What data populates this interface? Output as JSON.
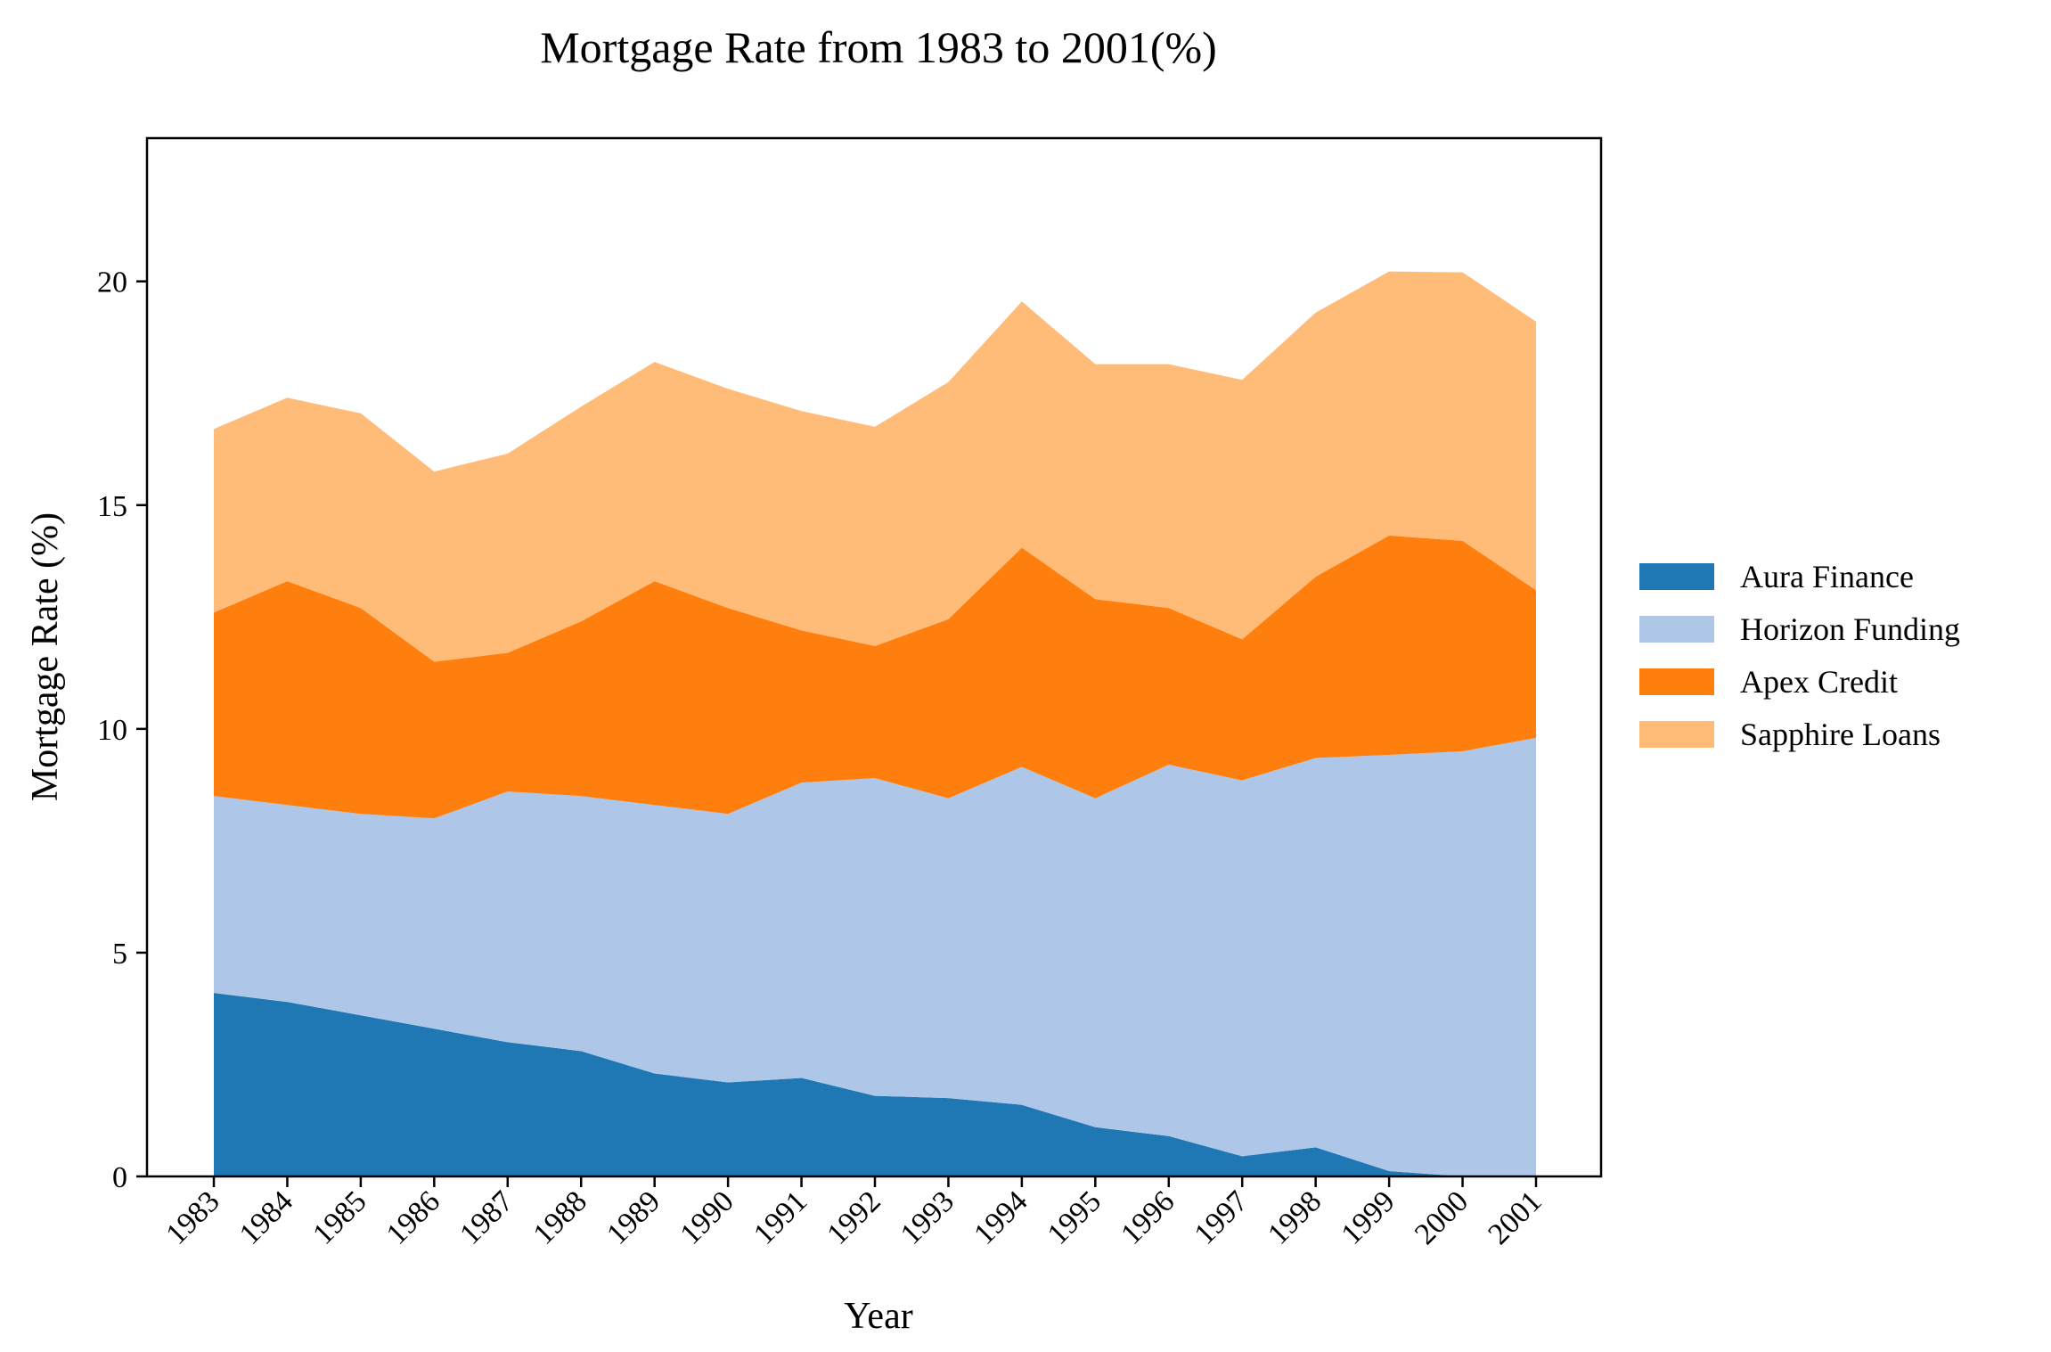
{
  "chart_data": {
    "type": "area",
    "stacked": true,
    "title": "Mortgage Rate from 1983 to 2001(%)",
    "xlabel": "Year",
    "ylabel": "Mortgage Rate (%)",
    "categories": [
      "1983",
      "1984",
      "1985",
      "1986",
      "1987",
      "1988",
      "1989",
      "1990",
      "1991",
      "1992",
      "1993",
      "1994",
      "1995",
      "1996",
      "1997",
      "1998",
      "1999",
      "2000",
      "2001"
    ],
    "ylim": [
      0,
      23.2
    ],
    "yticks": [
      0,
      5,
      10,
      15,
      20
    ],
    "grid": false,
    "legend_position": "right",
    "series": [
      {
        "name": "Aura Finance",
        "color": "#1f77b4",
        "values": [
          4.1,
          3.9,
          3.6,
          3.3,
          3.0,
          2.8,
          2.3,
          2.1,
          2.2,
          1.8,
          1.75,
          1.6,
          1.1,
          0.9,
          0.45,
          0.65,
          0.12,
          0.0,
          0.0
        ]
      },
      {
        "name": "Horizon Funding",
        "color": "#aec7e8",
        "values": [
          4.4,
          4.4,
          4.5,
          4.7,
          5.6,
          5.7,
          6.0,
          6.0,
          6.6,
          7.1,
          6.7,
          7.55,
          7.35,
          8.3,
          8.4,
          8.7,
          9.3,
          9.5,
          9.8
        ]
      },
      {
        "name": "Apex Credit",
        "color": "#ff7f0e",
        "values": [
          4.1,
          5.0,
          4.6,
          3.5,
          3.1,
          3.9,
          5.0,
          4.6,
          3.4,
          2.95,
          4.0,
          4.9,
          4.45,
          3.5,
          3.15,
          4.05,
          4.9,
          4.7,
          3.3
        ]
      },
      {
        "name": "Sapphire Loans",
        "color": "#ffbb78",
        "values": [
          4.1,
          4.1,
          4.35,
          4.25,
          4.45,
          4.8,
          4.9,
          4.9,
          4.9,
          4.9,
          5.3,
          5.5,
          5.25,
          5.45,
          5.8,
          5.9,
          5.9,
          6.0,
          6.0
        ]
      }
    ]
  }
}
